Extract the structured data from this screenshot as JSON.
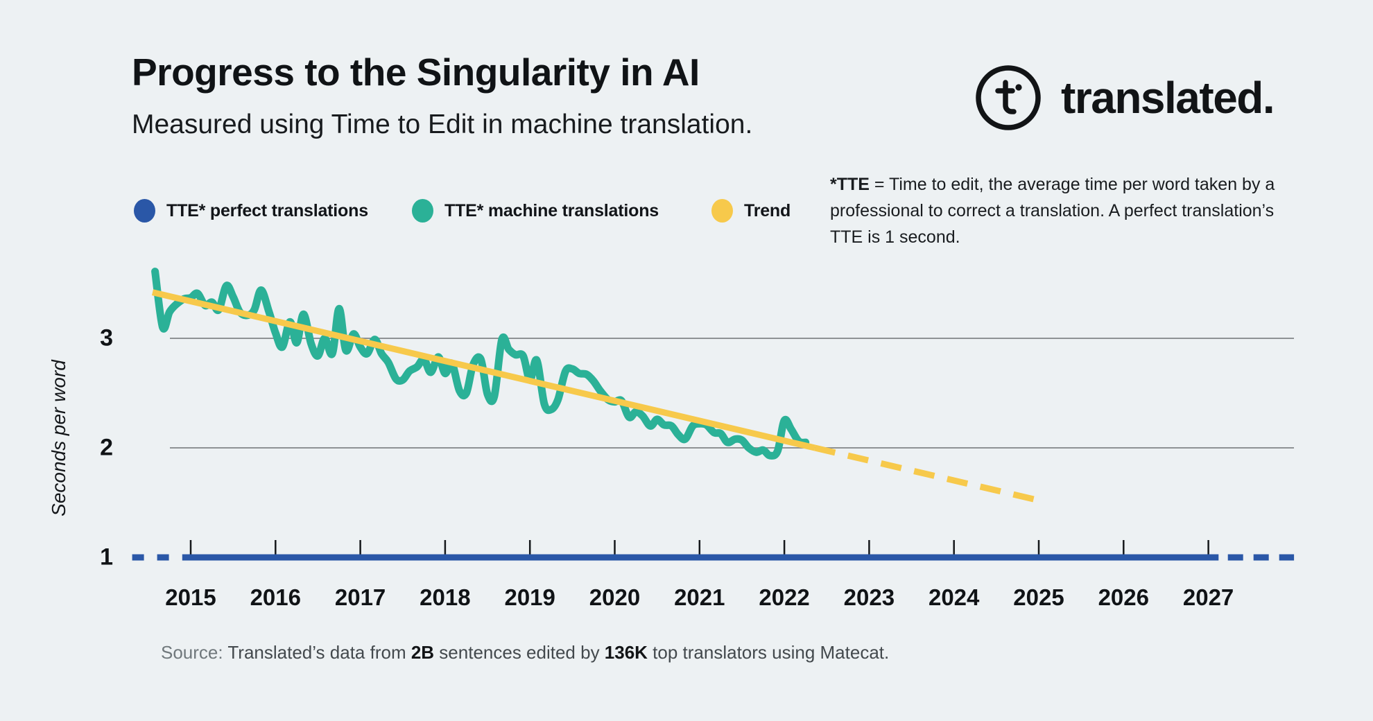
{
  "header": {
    "title": "Progress to the Singularity in AI",
    "subtitle": "Measured using Time to Edit in machine translation."
  },
  "logo": {
    "glyph": "t",
    "wordmark": "translated."
  },
  "legend": [
    {
      "label": "TTE* perfect translations",
      "color": "#2A57A7"
    },
    {
      "label": "TTE* machine translations",
      "color": "#2BB197"
    },
    {
      "label": "Trend",
      "color": "#F7C94B"
    }
  ],
  "note": {
    "lead": "*TTE",
    "line1_rest": " = Time to edit, the average time per word taken by a",
    "line2": "professional to correct a translation. A perfect translation’s",
    "line3": "TTE is 1 second."
  },
  "source": {
    "label": "Source:",
    "pre": " Translated’s data from ",
    "bold1": "2B",
    "mid": " sentences edited by ",
    "bold2": "136K",
    "post": " top translators using Matecat."
  },
  "chart_data": {
    "type": "line",
    "title": "Progress to the Singularity in AI",
    "ylabel": "Seconds per word",
    "yticks": [
      1,
      2,
      3
    ],
    "ylim": [
      0.75,
      3.8
    ],
    "xlim": [
      2014.3,
      2028.05
    ],
    "grid": "horizontal",
    "legend_position": "top",
    "years": [
      2015,
      2016,
      2017,
      2018,
      2019,
      2020,
      2021,
      2022,
      2023,
      2024,
      2025,
      2026,
      2027
    ],
    "colors": {
      "background": "#EDF1F3",
      "gridline": "#8E9294",
      "machine": "#2BB197",
      "perfect": "#2A57A7",
      "trend": "#F7C94B",
      "axis_tick": "#15181B"
    },
    "series": [
      {
        "name": "TTE* machine translations",
        "role": "machine",
        "color": "#2BB197",
        "style": "solid",
        "smooth": true,
        "points": [
          [
            2014.58,
            3.61
          ],
          [
            2014.67,
            3.1
          ],
          [
            2014.75,
            3.24
          ],
          [
            2014.83,
            3.31
          ],
          [
            2014.92,
            3.36
          ],
          [
            2015.0,
            3.37
          ],
          [
            2015.08,
            3.41
          ],
          [
            2015.17,
            3.3
          ],
          [
            2015.25,
            3.33
          ],
          [
            2015.33,
            3.26
          ],
          [
            2015.42,
            3.48
          ],
          [
            2015.5,
            3.38
          ],
          [
            2015.58,
            3.24
          ],
          [
            2015.67,
            3.21
          ],
          [
            2015.75,
            3.26
          ],
          [
            2015.83,
            3.44
          ],
          [
            2015.92,
            3.25
          ],
          [
            2016.0,
            3.05
          ],
          [
            2016.08,
            2.92
          ],
          [
            2016.17,
            3.15
          ],
          [
            2016.25,
            2.96
          ],
          [
            2016.33,
            3.22
          ],
          [
            2016.42,
            2.95
          ],
          [
            2016.5,
            2.84
          ],
          [
            2016.58,
            3.0
          ],
          [
            2016.67,
            2.86
          ],
          [
            2016.75,
            3.27
          ],
          [
            2016.83,
            2.89
          ],
          [
            2016.92,
            3.04
          ],
          [
            2017.0,
            2.92
          ],
          [
            2017.08,
            2.86
          ],
          [
            2017.17,
            2.99
          ],
          [
            2017.25,
            2.86
          ],
          [
            2017.33,
            2.78
          ],
          [
            2017.42,
            2.63
          ],
          [
            2017.5,
            2.62
          ],
          [
            2017.58,
            2.7
          ],
          [
            2017.67,
            2.74
          ],
          [
            2017.75,
            2.81
          ],
          [
            2017.83,
            2.69
          ],
          [
            2017.92,
            2.83
          ],
          [
            2018.0,
            2.68
          ],
          [
            2018.08,
            2.77
          ],
          [
            2018.17,
            2.52
          ],
          [
            2018.25,
            2.5
          ],
          [
            2018.33,
            2.76
          ],
          [
            2018.42,
            2.81
          ],
          [
            2018.5,
            2.49
          ],
          [
            2018.58,
            2.47
          ],
          [
            2018.67,
            2.99
          ],
          [
            2018.75,
            2.9
          ],
          [
            2018.83,
            2.85
          ],
          [
            2018.92,
            2.84
          ],
          [
            2019.0,
            2.62
          ],
          [
            2019.08,
            2.8
          ],
          [
            2019.17,
            2.4
          ],
          [
            2019.25,
            2.35
          ],
          [
            2019.33,
            2.44
          ],
          [
            2019.42,
            2.7
          ],
          [
            2019.5,
            2.72
          ],
          [
            2019.58,
            2.68
          ],
          [
            2019.67,
            2.67
          ],
          [
            2019.75,
            2.61
          ],
          [
            2019.83,
            2.52
          ],
          [
            2019.92,
            2.44
          ],
          [
            2020.0,
            2.42
          ],
          [
            2020.08,
            2.43
          ],
          [
            2020.17,
            2.28
          ],
          [
            2020.25,
            2.33
          ],
          [
            2020.33,
            2.29
          ],
          [
            2020.42,
            2.2
          ],
          [
            2020.5,
            2.26
          ],
          [
            2020.58,
            2.21
          ],
          [
            2020.67,
            2.2
          ],
          [
            2020.75,
            2.12
          ],
          [
            2020.83,
            2.08
          ],
          [
            2020.92,
            2.2
          ],
          [
            2021.0,
            2.22
          ],
          [
            2021.08,
            2.21
          ],
          [
            2021.17,
            2.14
          ],
          [
            2021.25,
            2.13
          ],
          [
            2021.33,
            2.05
          ],
          [
            2021.42,
            2.08
          ],
          [
            2021.5,
            2.07
          ],
          [
            2021.58,
            2.0
          ],
          [
            2021.67,
            1.96
          ],
          [
            2021.75,
            1.98
          ],
          [
            2021.83,
            1.93
          ],
          [
            2021.92,
            1.97
          ],
          [
            2022.0,
            2.25
          ],
          [
            2022.08,
            2.17
          ],
          [
            2022.17,
            2.06
          ],
          [
            2022.25,
            2.05
          ]
        ]
      },
      {
        "name": "Trend",
        "role": "trend",
        "color": "#F7C94B",
        "style": "solid",
        "smooth": false,
        "points": [
          [
            2014.55,
            3.42
          ],
          [
            2022.36,
            2.0
          ]
        ]
      },
      {
        "name": "Trend (projection)",
        "role": "trend_proj",
        "color": "#F7C94B",
        "style": "dashed",
        "smooth": false,
        "points": [
          [
            2022.36,
            2.0
          ],
          [
            2024.95,
            1.53
          ]
        ]
      },
      {
        "name": "TTE* perfect translations (before data)",
        "role": "perfect_pre",
        "color": "#2A57A7",
        "style": "dashed",
        "smooth": false,
        "points": [
          [
            2014.31,
            1
          ],
          [
            2014.86,
            1
          ]
        ]
      },
      {
        "name": "TTE* perfect translations",
        "role": "perfect",
        "color": "#2A57A7",
        "style": "solid",
        "smooth": false,
        "points": [
          [
            2014.9,
            1
          ],
          [
            2027.12,
            1
          ]
        ]
      },
      {
        "name": "TTE* perfect translations (projection)",
        "role": "perfect_post",
        "color": "#2A57A7",
        "style": "dashed",
        "smooth": false,
        "points": [
          [
            2027.23,
            1
          ],
          [
            2028.01,
            1
          ]
        ]
      }
    ]
  }
}
